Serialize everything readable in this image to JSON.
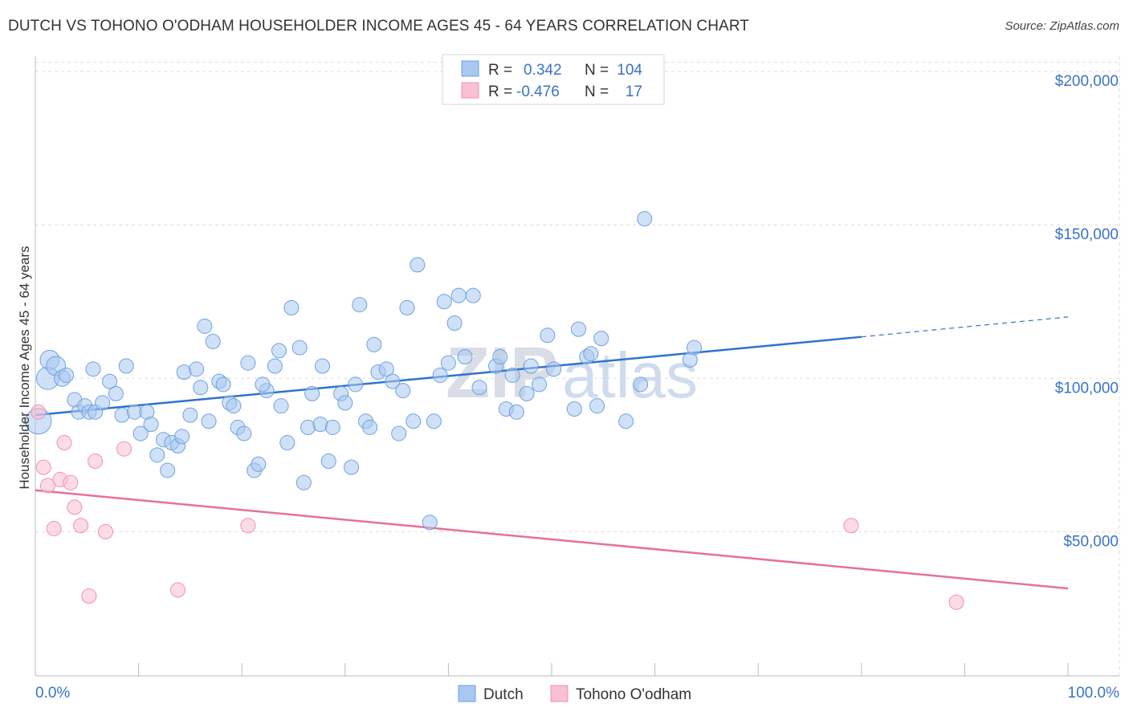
{
  "title": "DUTCH VS TOHONO O'ODHAM HOUSEHOLDER INCOME AGES 45 - 64 YEARS CORRELATION CHART",
  "source": "Source: ZipAtlas.com",
  "watermark": {
    "zip": "ZIP",
    "atlas": "atlas"
  },
  "legend": {
    "rows": [
      {
        "r_label": "R =",
        "r_value": "0.342",
        "n_label": "N =",
        "n_value": "104",
        "color": "#6fa1e0"
      },
      {
        "r_label": "R =",
        "r_value": "-0.476",
        "n_label": "N =",
        "n_value": "17",
        "color": "#f090b0"
      }
    ]
  },
  "bottom_legend": [
    "Dutch",
    "Tohono O'odham"
  ],
  "chart_data": {
    "type": "scatter",
    "ylabel": "Householder Income Ages 45 - 64 years",
    "x_tick_labels": [
      "0.0%",
      "100.0%"
    ],
    "y_tick_labels": [
      "$50,000",
      "$100,000",
      "$150,000",
      "$200,000"
    ],
    "y_ticks": [
      50000,
      100000,
      150000,
      200000
    ],
    "xlim": [
      0,
      100
    ],
    "ylim": [
      3000,
      205000
    ],
    "grid": true,
    "legend_position": "top-center",
    "series": [
      {
        "name": "Dutch",
        "color": "#a9c8f0",
        "stroke": "#6fa1e0",
        "trend": {
          "x0": 0,
          "y0": 88000,
          "x1": 80,
          "y1": 113500,
          "dash_to": 100,
          "dash_y": 120000,
          "color": "#2f72d0"
        },
        "points": [
          [
            0.3,
            86000,
            16
          ],
          [
            1.2,
            100000,
            14
          ],
          [
            1.4,
            106000,
            12
          ],
          [
            2.0,
            104000,
            12
          ],
          [
            2.6,
            100000,
            10
          ],
          [
            3.0,
            101000,
            9
          ],
          [
            3.8,
            93000,
            9
          ],
          [
            4.2,
            89000,
            9
          ],
          [
            4.8,
            91000,
            9
          ],
          [
            5.2,
            89000,
            9
          ],
          [
            5.8,
            89000,
            9
          ],
          [
            6.5,
            92000,
            9
          ],
          [
            7.2,
            99000,
            9
          ],
          [
            7.8,
            95000,
            9
          ],
          [
            8.4,
            88000,
            9
          ],
          [
            8.8,
            104000,
            9
          ],
          [
            9.6,
            89000,
            9
          ],
          [
            10.2,
            82000,
            9
          ],
          [
            10.8,
            89000,
            9
          ],
          [
            11.2,
            85000,
            9
          ],
          [
            11.8,
            75000,
            9
          ],
          [
            12.4,
            80000,
            9
          ],
          [
            12.8,
            70000,
            9
          ],
          [
            13.2,
            79000,
            9
          ],
          [
            13.8,
            78000,
            9
          ],
          [
            14.2,
            81000,
            9
          ],
          [
            14.4,
            102000,
            9
          ],
          [
            15.0,
            88000,
            9
          ],
          [
            15.6,
            103000,
            9
          ],
          [
            16.0,
            97000,
            9
          ],
          [
            16.4,
            117000,
            9
          ],
          [
            16.8,
            86000,
            9
          ],
          [
            17.2,
            112000,
            9
          ],
          [
            17.8,
            99000,
            9
          ],
          [
            18.2,
            98000,
            9
          ],
          [
            18.8,
            92000,
            9
          ],
          [
            19.2,
            91000,
            9
          ],
          [
            19.6,
            84000,
            9
          ],
          [
            20.2,
            82000,
            9
          ],
          [
            20.6,
            105000,
            9
          ],
          [
            21.2,
            70000,
            9
          ],
          [
            21.6,
            72000,
            9
          ],
          [
            22.4,
            96000,
            9
          ],
          [
            23.2,
            104000,
            9
          ],
          [
            23.6,
            109000,
            9
          ],
          [
            23.8,
            91000,
            9
          ],
          [
            24.4,
            79000,
            9
          ],
          [
            24.8,
            123000,
            9
          ],
          [
            25.6,
            110000,
            9
          ],
          [
            26.0,
            66000,
            9
          ],
          [
            26.4,
            84000,
            9
          ],
          [
            26.8,
            95000,
            9
          ],
          [
            27.6,
            85000,
            9
          ],
          [
            27.8,
            104000,
            9
          ],
          [
            28.4,
            73000,
            9
          ],
          [
            28.8,
            84000,
            9
          ],
          [
            29.6,
            95000,
            9
          ],
          [
            30.0,
            92000,
            9
          ],
          [
            30.6,
            71000,
            9
          ],
          [
            31.0,
            98000,
            9
          ],
          [
            31.4,
            124000,
            9
          ],
          [
            32.0,
            86000,
            9
          ],
          [
            32.4,
            84000,
            9
          ],
          [
            32.8,
            111000,
            9
          ],
          [
            33.2,
            102000,
            9
          ],
          [
            34.0,
            103000,
            9
          ],
          [
            34.6,
            99000,
            9
          ],
          [
            35.2,
            82000,
            9
          ],
          [
            35.6,
            96000,
            9
          ],
          [
            36.0,
            123000,
            9
          ],
          [
            36.6,
            86000,
            9
          ],
          [
            37.0,
            137000,
            9
          ],
          [
            38.2,
            53000,
            9
          ],
          [
            39.2,
            101000,
            9
          ],
          [
            39.6,
            125000,
            9
          ],
          [
            40.0,
            105000,
            9
          ],
          [
            40.6,
            118000,
            9
          ],
          [
            41.0,
            127000,
            9
          ],
          [
            41.6,
            107000,
            9
          ],
          [
            42.4,
            127000,
            9
          ],
          [
            43.0,
            97000,
            9
          ],
          [
            44.6,
            104000,
            9
          ],
          [
            45.0,
            107000,
            9
          ],
          [
            45.6,
            90000,
            9
          ],
          [
            46.2,
            101000,
            9
          ],
          [
            46.6,
            89000,
            9
          ],
          [
            47.6,
            95000,
            9
          ],
          [
            48.0,
            104000,
            9
          ],
          [
            48.8,
            98000,
            9
          ],
          [
            49.6,
            114000,
            9
          ],
          [
            50.2,
            103000,
            9
          ],
          [
            52.2,
            90000,
            9
          ],
          [
            52.6,
            116000,
            9
          ],
          [
            53.4,
            107000,
            9
          ],
          [
            53.8,
            108000,
            9
          ],
          [
            54.4,
            91000,
            9
          ],
          [
            54.8,
            113000,
            9
          ],
          [
            57.2,
            86000,
            9
          ],
          [
            58.6,
            98000,
            9
          ],
          [
            59.0,
            152000,
            9
          ],
          [
            63.4,
            106000,
            9
          ],
          [
            63.8,
            110000,
            9
          ],
          [
            5.6,
            103000,
            9
          ],
          [
            22.0,
            98000,
            9
          ],
          [
            38.6,
            86000,
            9
          ]
        ]
      },
      {
        "name": "Tohono O'odham",
        "color": "#f8c0d2",
        "stroke": "#f090b0",
        "trend": {
          "x0": 0,
          "y0": 63500,
          "x1": 100,
          "y1": 31500,
          "color": "#e8709a"
        },
        "points": [
          [
            0.3,
            89000,
            9
          ],
          [
            0.8,
            71000,
            9
          ],
          [
            1.2,
            65000,
            9
          ],
          [
            1.8,
            51000,
            9
          ],
          [
            2.4,
            67000,
            9
          ],
          [
            2.8,
            79000,
            9
          ],
          [
            3.4,
            66000,
            9
          ],
          [
            3.8,
            58000,
            9
          ],
          [
            4.4,
            52000,
            9
          ],
          [
            5.2,
            29000,
            9
          ],
          [
            5.8,
            73000,
            9
          ],
          [
            6.8,
            50000,
            9
          ],
          [
            8.6,
            77000,
            9
          ],
          [
            13.8,
            31000,
            9
          ],
          [
            20.6,
            52000,
            9
          ],
          [
            79.0,
            52000,
            9
          ],
          [
            89.2,
            27000,
            9
          ]
        ]
      }
    ]
  }
}
